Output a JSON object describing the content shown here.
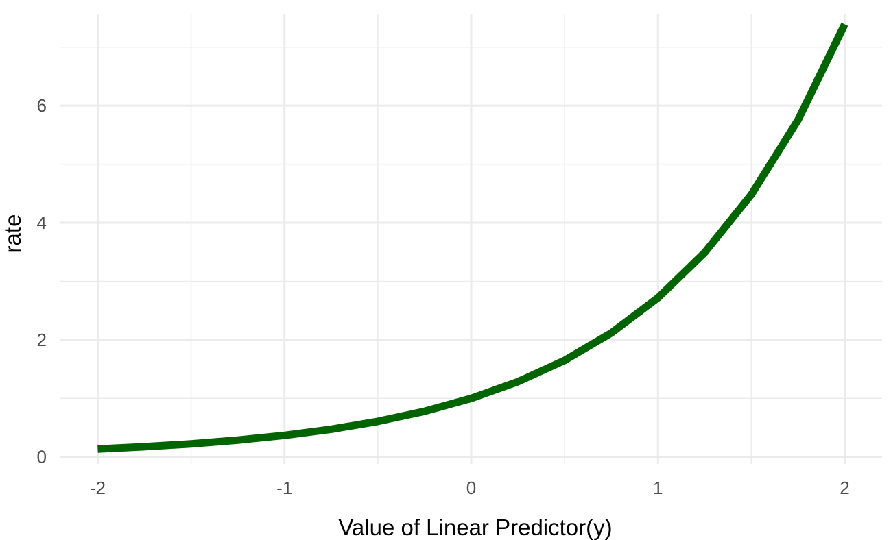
{
  "chart_data": {
    "type": "line",
    "title": "",
    "xlabel": "Value of Linear Predictor(y)",
    "ylabel": "rate",
    "xlim": [
      -2.2,
      2.2
    ],
    "ylim": [
      -0.12,
      7.57
    ],
    "x_ticks": [
      -2,
      -1,
      0,
      1,
      2
    ],
    "x_tick_labels": [
      "-2",
      "-1",
      "0",
      "1",
      "2"
    ],
    "y_ticks": [
      0,
      2,
      4,
      6
    ],
    "y_tick_labels": [
      "0",
      "2",
      "4",
      "6"
    ],
    "grid": true,
    "legend": "none",
    "series": [
      {
        "color": "#006400",
        "x": [
          -2.0,
          -1.75,
          -1.5,
          -1.25,
          -1.0,
          -0.75,
          -0.5,
          -0.25,
          0.0,
          0.25,
          0.5,
          0.75,
          1.0,
          1.25,
          1.5,
          1.75,
          2.0
        ],
        "y": [
          0.135,
          0.174,
          0.223,
          0.287,
          0.368,
          0.472,
          0.607,
          0.779,
          1.0,
          1.284,
          1.649,
          2.117,
          2.718,
          3.49,
          4.482,
          5.755,
          7.389
        ]
      }
    ]
  }
}
